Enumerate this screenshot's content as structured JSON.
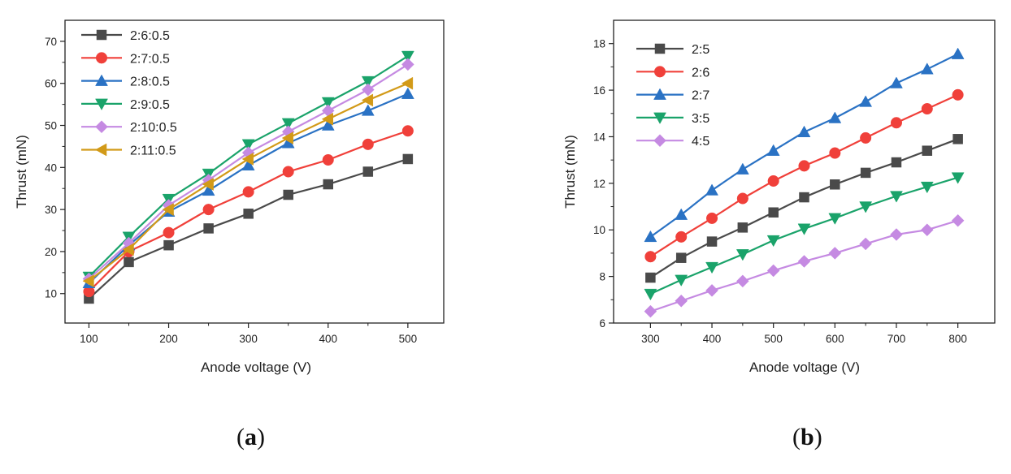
{
  "chart_data": [
    {
      "type": "line",
      "panel_label": "a",
      "xlabel": "Anode voltage (V)",
      "ylabel": "Thrust (mN)",
      "xlim": [
        70,
        545
      ],
      "ylim": [
        3,
        75
      ],
      "x": [
        100,
        150,
        200,
        250,
        300,
        350,
        400,
        450,
        500
      ],
      "xticks": [
        100,
        200,
        300,
        400,
        500
      ],
      "yticks": [
        10,
        20,
        30,
        40,
        50,
        60,
        70
      ],
      "legend_position": "top-left",
      "series": [
        {
          "name": "2:6:0.5",
          "color": "#4a4a4a",
          "marker": "square",
          "values": [
            8.8,
            17.5,
            21.5,
            25.5,
            29.0,
            33.5,
            36.0,
            39.0,
            42.0
          ]
        },
        {
          "name": "2:7:0.5",
          "color": "#f0403a",
          "marker": "circle",
          "values": [
            10.5,
            20.0,
            24.5,
            30.0,
            34.2,
            39.0,
            41.8,
            45.5,
            48.7
          ]
        },
        {
          "name": "2:8:0.5",
          "color": "#2a72c4",
          "marker": "triangle-up",
          "values": [
            12.5,
            21.5,
            29.5,
            34.5,
            40.5,
            45.8,
            50.0,
            53.5,
            57.5
          ]
        },
        {
          "name": "2:9:0.5",
          "color": "#1aa36a",
          "marker": "triangle-down",
          "values": [
            14.0,
            23.5,
            32.5,
            38.5,
            45.5,
            50.5,
            55.5,
            60.5,
            66.5
          ]
        },
        {
          "name": "2:10:0.5",
          "color": "#c58ae2",
          "marker": "diamond",
          "values": [
            13.5,
            22.0,
            31.0,
            37.0,
            43.5,
            48.5,
            53.5,
            58.5,
            64.5
          ]
        },
        {
          "name": "2:11:0.5",
          "color": "#d29a18",
          "marker": "triangle-left",
          "values": [
            13.0,
            20.5,
            30.0,
            36.0,
            42.0,
            47.0,
            51.5,
            56.0,
            60.0
          ]
        }
      ]
    },
    {
      "type": "line",
      "panel_label": "b",
      "xlabel": "Anode voltage (V)",
      "ylabel": "Thrust (mN)",
      "xlim": [
        240,
        860
      ],
      "ylim": [
        6,
        19
      ],
      "x": [
        300,
        350,
        400,
        450,
        500,
        550,
        600,
        650,
        700,
        750,
        800
      ],
      "xticks": [
        300,
        400,
        500,
        600,
        700,
        800
      ],
      "yticks": [
        6,
        8,
        10,
        12,
        14,
        16,
        18
      ],
      "legend_position": "top-left",
      "series": [
        {
          "name": "2:5",
          "color": "#4a4a4a",
          "marker": "square",
          "values": [
            7.95,
            8.8,
            9.5,
            10.1,
            10.75,
            11.4,
            11.95,
            12.45,
            12.9,
            13.4,
            13.9
          ]
        },
        {
          "name": "2:6",
          "color": "#f0403a",
          "marker": "circle",
          "values": [
            8.85,
            9.7,
            10.5,
            11.35,
            12.1,
            12.75,
            13.3,
            13.95,
            14.6,
            15.2,
            15.8
          ]
        },
        {
          "name": "2:7",
          "color": "#2a72c4",
          "marker": "triangle-up",
          "values": [
            9.7,
            10.65,
            11.7,
            12.6,
            13.4,
            14.2,
            14.8,
            15.5,
            16.3,
            16.9,
            17.55
          ]
        },
        {
          "name": "3:5",
          "color": "#1aa36a",
          "marker": "triangle-down",
          "values": [
            7.25,
            7.85,
            8.4,
            8.95,
            9.55,
            10.05,
            10.5,
            11.0,
            11.45,
            11.85,
            12.25
          ]
        },
        {
          "name": "4:5",
          "color": "#c58ae2",
          "marker": "diamond",
          "values": [
            6.5,
            6.95,
            7.4,
            7.8,
            8.25,
            8.65,
            9.0,
            9.4,
            9.8,
            10.0,
            10.4
          ]
        }
      ]
    }
  ]
}
